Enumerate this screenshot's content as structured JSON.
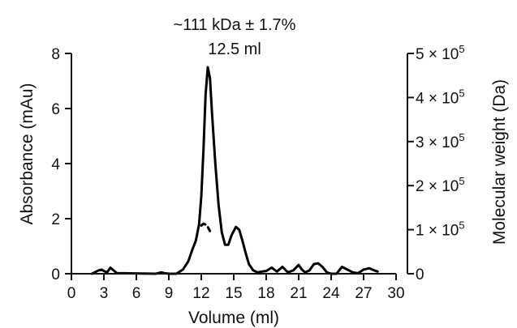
{
  "chart_data": {
    "type": "line",
    "xlabel": "Volume (ml)",
    "ylabel": "Absorbance (mAu)",
    "y2label": "Molecular weight (Da)",
    "xlim": [
      0,
      30
    ],
    "ylim": [
      0,
      8
    ],
    "y2lim": [
      0,
      500000
    ],
    "x_ticks": [
      0,
      3,
      6,
      9,
      12,
      15,
      18,
      21,
      24,
      27,
      30
    ],
    "x_tick_labels": [
      "0",
      "3",
      "6",
      "9",
      "12",
      "15",
      "18",
      "21",
      "24",
      "27",
      "30"
    ],
    "y_ticks": [
      0,
      2,
      4,
      6,
      8
    ],
    "y_tick_labels": [
      "0",
      "2",
      "4",
      "6",
      "8"
    ],
    "y2_ticks": [
      0,
      100000,
      200000,
      300000,
      400000,
      500000
    ],
    "y2_tick_labels": [
      "0",
      "1 × 10",
      "2 × 10",
      "3 × 10",
      "4 × 10",
      "5 × 10"
    ],
    "y2_tick_exponents": [
      "",
      "5",
      "5",
      "5",
      "5",
      "5"
    ],
    "annotations": [
      "~111 kDa ± 1.7%",
      "12.5 ml"
    ],
    "grid": false,
    "series": [
      {
        "axis": "left",
        "style": "solid",
        "x": [
          1.9,
          2.5,
          2.8,
          3.0,
          3.3,
          3.6,
          3.9,
          4.2,
          7.8,
          8.3,
          8.6,
          9.0,
          9.7,
          10.3,
          10.8,
          11.2,
          11.5,
          11.8,
          12.0,
          12.2,
          12.4,
          12.6,
          12.8,
          13.0,
          13.3,
          13.6,
          13.9,
          14.2,
          14.5,
          14.8,
          15.2,
          15.5,
          15.8,
          16.1,
          16.4,
          16.8,
          17.2,
          17.6,
          18.0,
          18.5,
          19.0,
          19.5,
          20.0,
          20.5,
          21.0,
          21.3,
          21.6,
          22.0,
          22.4,
          22.8,
          23.2,
          23.6,
          24.0,
          24.5,
          25.0,
          25.5,
          26.0,
          26.5,
          27.0,
          27.5,
          28.0,
          28.3
        ],
        "y": [
          0.0,
          0.12,
          0.15,
          0.1,
          0.05,
          0.22,
          0.12,
          0.02,
          0.0,
          0.05,
          0.02,
          0.0,
          0.0,
          0.15,
          0.45,
          0.9,
          1.2,
          1.8,
          2.8,
          4.5,
          6.5,
          7.5,
          7.1,
          5.8,
          4.0,
          2.5,
          1.5,
          1.05,
          1.05,
          1.4,
          1.7,
          1.6,
          1.2,
          0.75,
          0.35,
          0.12,
          0.05,
          0.08,
          0.1,
          0.22,
          0.08,
          0.25,
          0.05,
          0.12,
          0.32,
          0.15,
          0.05,
          0.12,
          0.35,
          0.38,
          0.25,
          0.05,
          0.0,
          0.0,
          0.25,
          0.15,
          0.05,
          0.02,
          0.15,
          0.2,
          0.12,
          0.08
        ]
      },
      {
        "axis": "left",
        "style": "dashed",
        "x": [
          12.0,
          12.2,
          12.4,
          12.6,
          12.8
        ],
        "y": [
          1.75,
          1.82,
          1.78,
          1.7,
          1.55
        ]
      }
    ]
  }
}
